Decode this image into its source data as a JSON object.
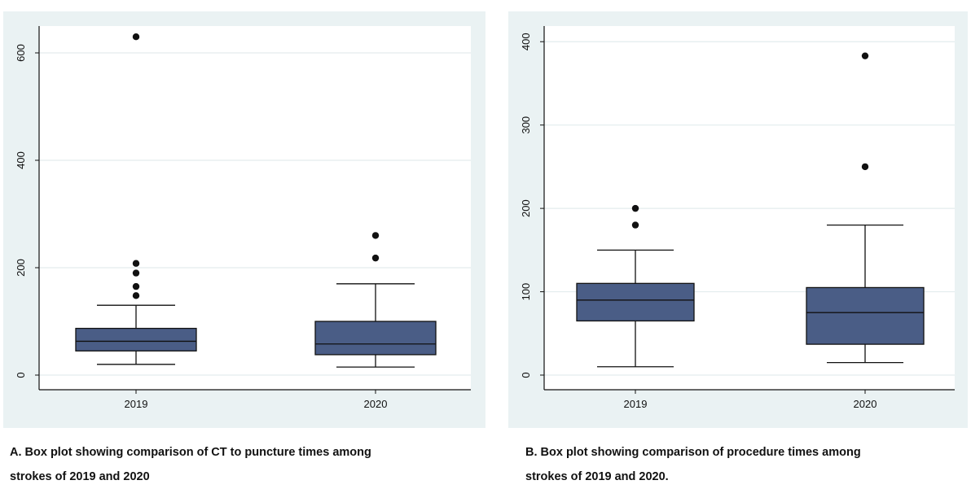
{
  "chart_data": [
    {
      "type": "box",
      "categories": [
        "2019",
        "2020"
      ],
      "ylim": [
        0,
        650
      ],
      "yticks": [
        0,
        200,
        400,
        600
      ],
      "grid": true,
      "boxes": [
        {
          "category": "2019",
          "whisker_low": 20,
          "q1": 45,
          "median": 63,
          "q3": 87,
          "whisker_high": 130,
          "outliers": [
            148,
            165,
            190,
            208,
            630
          ]
        },
        {
          "category": "2020",
          "whisker_low": 15,
          "q1": 38,
          "median": 58,
          "q3": 100,
          "whisker_high": 170,
          "outliers": [
            218,
            260
          ]
        }
      ]
    },
    {
      "type": "box",
      "categories": [
        "2019",
        "2020"
      ],
      "ylim": [
        0,
        410
      ],
      "yticks": [
        0,
        100,
        200,
        300,
        400
      ],
      "grid": true,
      "boxes": [
        {
          "category": "2019",
          "whisker_low": 10,
          "q1": 65,
          "median": 90,
          "q3": 110,
          "whisker_high": 150,
          "outliers": [
            180,
            200
          ]
        },
        {
          "category": "2020",
          "whisker_low": 15,
          "q1": 37,
          "median": 75,
          "q3": 105,
          "whisker_high": 180,
          "outliers": [
            250,
            383
          ]
        }
      ]
    }
  ],
  "captions": {
    "a_line1": "A. Box plot showing comparison of CT to puncture times among",
    "a_line2": "strokes of 2019 and 2020",
    "b_line1": "B. Box plot showing comparison of procedure times among",
    "b_line2": "strokes of 2019 and 2020."
  },
  "colors": {
    "box_fill": "#4a5d86",
    "outer_bg": "#eaf2f3",
    "plot_bg": "#ffffff",
    "grid": "#e3ecee",
    "ink": "#111111"
  }
}
